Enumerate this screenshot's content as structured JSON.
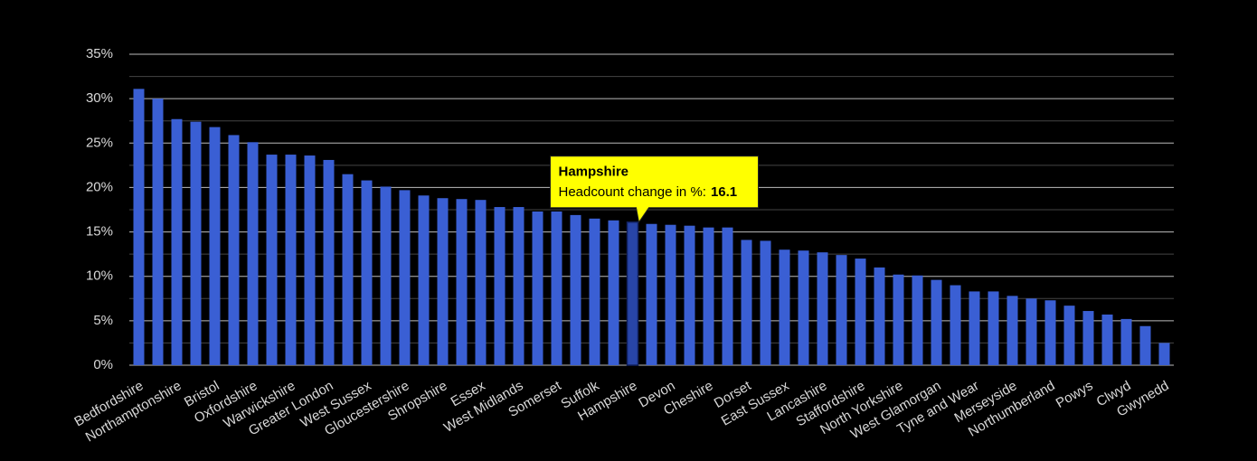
{
  "chart_data": {
    "type": "bar",
    "categories": [
      "Bedfordshire",
      null,
      "Northamptonshire",
      null,
      "Bristol",
      null,
      "Oxfordshire",
      null,
      "Warwickshire",
      null,
      "Greater London",
      null,
      "West Sussex",
      null,
      "Gloucestershire",
      null,
      "Shropshire",
      null,
      "Essex",
      null,
      "West Midlands",
      null,
      "Somerset",
      null,
      "Suffolk",
      null,
      "Hampshire",
      null,
      "Devon",
      null,
      "Cheshire",
      null,
      "Dorset",
      null,
      "East Sussex",
      null,
      "Lancashire",
      null,
      "Staffordshire",
      null,
      "North Yorkshire",
      null,
      "West Glamorgan",
      null,
      "Tyne and Wear",
      null,
      "Merseyside",
      null,
      "Northumberland",
      null,
      "Powys",
      null,
      "Clwyd",
      null,
      "Gwynedd"
    ],
    "values": [
      31.1,
      30.0,
      27.7,
      27.4,
      26.8,
      25.9,
      25.1,
      23.7,
      23.7,
      23.6,
      23.1,
      21.5,
      20.8,
      20.1,
      19.7,
      19.1,
      18.8,
      18.7,
      18.6,
      17.8,
      17.8,
      17.3,
      17.3,
      16.9,
      16.5,
      16.3,
      16.1,
      15.9,
      15.8,
      15.7,
      15.5,
      15.5,
      14.1,
      14.0,
      13.0,
      12.9,
      12.7,
      12.4,
      12.0,
      11.0,
      10.2,
      10.1,
      9.6,
      9.0,
      8.3,
      8.3,
      7.8,
      7.5,
      7.3,
      6.7,
      6.1,
      5.7,
      5.2,
      4.4,
      2.5
    ],
    "color": "#3a5fd4",
    "ylim": [
      0,
      35
    ],
    "yticks": [
      {
        "value": 0,
        "label": "0%"
      },
      {
        "value": 5,
        "label": "5%"
      },
      {
        "value": 10,
        "label": "10%"
      },
      {
        "value": 15,
        "label": "15%"
      },
      {
        "value": 20,
        "label": "20%"
      },
      {
        "value": 25,
        "label": "25%"
      },
      {
        "value": 30,
        "label": "30%"
      },
      {
        "value": 35,
        "label": "35%"
      }
    ],
    "minor_yticks": [
      2.5,
      7.5,
      12.5,
      17.5,
      22.5,
      27.5,
      32.5
    ],
    "grid": true,
    "tooltip": {
      "category": "Hampshire",
      "label": "Headcount change in %:",
      "value": 16.1
    }
  }
}
